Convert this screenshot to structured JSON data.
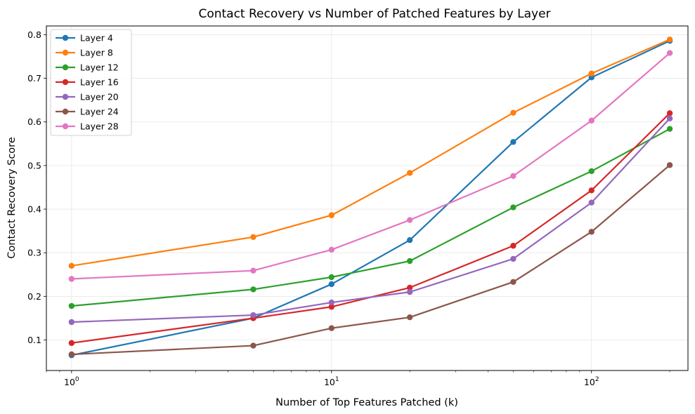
{
  "chart_data": {
    "type": "line",
    "title": "Contact Recovery vs Number of Patched Features by Layer",
    "xlabel": "Number of Top Features Patched (k)",
    "ylabel": "Contact Recovery Score",
    "xscale": "log",
    "x": [
      1,
      5,
      10,
      20,
      50,
      100,
      200
    ],
    "xlim": [
      0.8,
      235
    ],
    "ylim": [
      0.03,
      0.82
    ],
    "yticks": [
      0.1,
      0.2,
      0.3,
      0.4,
      0.5,
      0.6,
      0.7,
      0.8
    ],
    "ytick_labels": [
      "0.1",
      "0.2",
      "0.3",
      "0.4",
      "0.5",
      "0.6",
      "0.7",
      "0.8"
    ],
    "xticks": [
      {
        "value": 1,
        "base": "10",
        "exp": "0"
      },
      {
        "value": 10,
        "base": "10",
        "exp": "1"
      },
      {
        "value": 100,
        "base": "10",
        "exp": "2"
      }
    ],
    "grid": true,
    "legend_position": "top-left",
    "series": [
      {
        "name": "Layer 4",
        "color": "#1f77b4",
        "values": [
          0.065,
          0.15,
          0.228,
          0.329,
          0.554,
          0.702,
          0.786
        ]
      },
      {
        "name": "Layer 8",
        "color": "#ff7f0e",
        "values": [
          0.27,
          0.336,
          0.386,
          0.483,
          0.621,
          0.711,
          0.789
        ]
      },
      {
        "name": "Layer 12",
        "color": "#2ca02c",
        "values": [
          0.178,
          0.216,
          0.244,
          0.281,
          0.404,
          0.487,
          0.584
        ]
      },
      {
        "name": "Layer 16",
        "color": "#d62728",
        "values": [
          0.093,
          0.15,
          0.176,
          0.22,
          0.316,
          0.443,
          0.62
        ]
      },
      {
        "name": "Layer 20",
        "color": "#9467bd",
        "values": [
          0.141,
          0.157,
          0.186,
          0.21,
          0.286,
          0.415,
          0.608
        ]
      },
      {
        "name": "Layer 24",
        "color": "#8c564b",
        "values": [
          0.067,
          0.087,
          0.127,
          0.152,
          0.233,
          0.348,
          0.501
        ]
      },
      {
        "name": "Layer 28",
        "color": "#e377c2",
        "values": [
          0.24,
          0.259,
          0.307,
          0.375,
          0.476,
          0.603,
          0.758
        ]
      }
    ]
  }
}
